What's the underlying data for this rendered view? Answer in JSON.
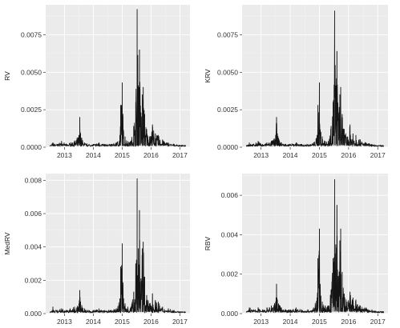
{
  "chart_data": [
    {
      "type": "line",
      "ylabel": "RV",
      "ylim": [
        0,
        0.0095
      ],
      "xlim": [
        2012.35,
        2017.35
      ],
      "y_ticks": [
        0.0,
        0.0025,
        0.005,
        0.0075
      ],
      "y_tick_labels": [
        "0.0000",
        "0.0025",
        "0.0050",
        "0.0075"
      ],
      "x_ticks": [
        2013,
        2014,
        2015,
        2016,
        2017
      ],
      "x_tick_labels": [
        "2013",
        "2014",
        "2015",
        "2016",
        "2017"
      ],
      "grid": true,
      "color": "#151515",
      "baseline": 0.00012,
      "series": [
        {
          "x": [
            2012.5,
            2012.6,
            2012.75,
            2012.9,
            2013.05,
            2013.2,
            2013.35,
            2013.5,
            2013.53,
            2013.56,
            2013.6,
            2013.7,
            2013.85,
            2014.0,
            2014.2,
            2014.4,
            2014.6,
            2014.8,
            2014.92,
            2014.95,
            2015.0,
            2015.05,
            2015.1,
            2015.2,
            2015.3,
            2015.4,
            2015.47,
            2015.52,
            2015.56,
            2015.6,
            2015.65,
            2015.7,
            2015.73,
            2015.78,
            2015.85,
            2015.95,
            2016.05,
            2016.15,
            2016.25,
            2016.4,
            2016.6,
            2016.8,
            2017.0,
            2017.2
          ],
          "values": [
            0.0001,
            0.0003,
            0.0002,
            0.0004,
            0.0002,
            0.0003,
            0.0004,
            0.0008,
            0.002,
            0.0009,
            0.0006,
            0.0003,
            0.0002,
            0.0002,
            0.0003,
            0.0002,
            0.0002,
            0.0003,
            0.0008,
            0.0028,
            0.0043,
            0.001,
            0.0007,
            0.0004,
            0.0004,
            0.0014,
            0.003,
            0.0092,
            0.0041,
            0.0065,
            0.0023,
            0.0035,
            0.004,
            0.0022,
            0.0012,
            0.0007,
            0.0015,
            0.0009,
            0.0008,
            0.0005,
            0.0003,
            0.0002,
            0.0001,
            0.0001
          ]
        }
      ]
    },
    {
      "type": "line",
      "ylabel": "KRV",
      "ylim": [
        0,
        0.0095
      ],
      "xlim": [
        2012.35,
        2017.35
      ],
      "y_ticks": [
        0.0,
        0.0025,
        0.005,
        0.0075
      ],
      "y_tick_labels": [
        "0.0000",
        "0.0025",
        "0.0050",
        "0.0075"
      ],
      "x_ticks": [
        2013,
        2014,
        2015,
        2016,
        2017
      ],
      "x_tick_labels": [
        "2013",
        "2014",
        "2015",
        "2016",
        "2017"
      ],
      "grid": true,
      "color": "#151515",
      "baseline": 0.00012,
      "series": [
        {
          "x": [
            2012.5,
            2012.6,
            2012.75,
            2012.9,
            2013.05,
            2013.2,
            2013.35,
            2013.5,
            2013.53,
            2013.56,
            2013.6,
            2013.7,
            2013.85,
            2014.0,
            2014.2,
            2014.4,
            2014.6,
            2014.8,
            2014.92,
            2014.95,
            2015.0,
            2015.05,
            2015.1,
            2015.2,
            2015.3,
            2015.4,
            2015.47,
            2015.52,
            2015.56,
            2015.6,
            2015.65,
            2015.7,
            2015.73,
            2015.78,
            2015.85,
            2015.95,
            2016.05,
            2016.15,
            2016.25,
            2016.4,
            2016.6,
            2016.8,
            2017.0,
            2017.2
          ],
          "values": [
            0.0001,
            0.0003,
            0.0002,
            0.0004,
            0.0002,
            0.0003,
            0.0004,
            0.0008,
            0.002,
            0.0009,
            0.0006,
            0.0003,
            0.0002,
            0.0002,
            0.0003,
            0.0002,
            0.0002,
            0.0003,
            0.0008,
            0.0028,
            0.0043,
            0.001,
            0.0007,
            0.0004,
            0.0004,
            0.0014,
            0.003,
            0.0091,
            0.0041,
            0.0064,
            0.0023,
            0.0035,
            0.004,
            0.0022,
            0.0012,
            0.0007,
            0.0015,
            0.0009,
            0.0008,
            0.0005,
            0.0003,
            0.0002,
            0.0001,
            0.0001
          ]
        }
      ]
    },
    {
      "type": "line",
      "ylabel": "MedRV",
      "ylim": [
        0,
        0.0084
      ],
      "xlim": [
        2012.35,
        2017.35
      ],
      "y_ticks": [
        0.0,
        0.002,
        0.004,
        0.006,
        0.008
      ],
      "y_tick_labels": [
        "0.000",
        "0.002",
        "0.004",
        "0.006",
        "0.008"
      ],
      "x_ticks": [
        2013,
        2014,
        2015,
        2016,
        2017
      ],
      "x_tick_labels": [
        "2013",
        "2014",
        "2015",
        "2016",
        "2017"
      ],
      "grid": true,
      "color": "#151515",
      "baseline": 0.0001,
      "series": [
        {
          "x": [
            2012.5,
            2012.6,
            2012.75,
            2012.9,
            2013.05,
            2013.2,
            2013.35,
            2013.5,
            2013.53,
            2013.56,
            2013.6,
            2013.7,
            2013.85,
            2014.0,
            2014.2,
            2014.4,
            2014.6,
            2014.8,
            2014.92,
            2014.95,
            2015.0,
            2015.05,
            2015.1,
            2015.2,
            2015.3,
            2015.4,
            2015.47,
            2015.52,
            2015.56,
            2015.6,
            2015.65,
            2015.7,
            2015.73,
            2015.78,
            2015.85,
            2015.95,
            2016.05,
            2016.15,
            2016.25,
            2016.4,
            2016.6,
            2016.8,
            2017.0,
            2017.2
          ],
          "values": [
            0.0001,
            0.0004,
            0.0002,
            0.0003,
            0.0002,
            0.0003,
            0.0004,
            0.0006,
            0.0014,
            0.0007,
            0.0005,
            0.0003,
            0.0002,
            0.0002,
            0.0003,
            0.0002,
            0.0002,
            0.0003,
            0.0009,
            0.0028,
            0.0042,
            0.0009,
            0.0006,
            0.0004,
            0.0004,
            0.0013,
            0.003,
            0.0081,
            0.0039,
            0.0062,
            0.0021,
            0.0039,
            0.0043,
            0.0022,
            0.0011,
            0.0006,
            0.0012,
            0.0008,
            0.0007,
            0.0004,
            0.0003,
            0.0002,
            0.0001,
            0.0001
          ]
        }
      ]
    },
    {
      "type": "line",
      "ylabel": "RBV",
      "ylim": [
        0,
        0.0071
      ],
      "xlim": [
        2012.35,
        2017.35
      ],
      "y_ticks": [
        0.0,
        0.002,
        0.004,
        0.006
      ],
      "y_tick_labels": [
        "0.000",
        "0.002",
        "0.004",
        "0.006"
      ],
      "x_ticks": [
        2013,
        2014,
        2015,
        2016,
        2017
      ],
      "x_tick_labels": [
        "2013",
        "2014",
        "2015",
        "2016",
        "2017"
      ],
      "grid": true,
      "color": "#151515",
      "baseline": 0.0001,
      "series": [
        {
          "x": [
            2012.5,
            2012.6,
            2012.75,
            2012.9,
            2013.05,
            2013.2,
            2013.35,
            2013.5,
            2013.53,
            2013.56,
            2013.6,
            2013.7,
            2013.85,
            2014.0,
            2014.2,
            2014.4,
            2014.6,
            2014.8,
            2014.92,
            2014.95,
            2015.0,
            2015.05,
            2015.1,
            2015.2,
            2015.3,
            2015.4,
            2015.47,
            2015.52,
            2015.56,
            2015.6,
            2015.65,
            2015.7,
            2015.73,
            2015.78,
            2015.85,
            2015.95,
            2016.05,
            2016.15,
            2016.25,
            2016.4,
            2016.6,
            2016.8,
            2017.0,
            2017.2
          ],
          "values": [
            0.0001,
            0.0003,
            0.0002,
            0.0003,
            0.0002,
            0.0003,
            0.0004,
            0.0006,
            0.0015,
            0.0007,
            0.0005,
            0.0003,
            0.0002,
            0.0002,
            0.0003,
            0.0002,
            0.0002,
            0.0003,
            0.0008,
            0.0028,
            0.0043,
            0.0009,
            0.0006,
            0.0004,
            0.0004,
            0.0012,
            0.0028,
            0.0068,
            0.0035,
            0.0055,
            0.0019,
            0.0037,
            0.0043,
            0.0021,
            0.001,
            0.0006,
            0.0011,
            0.0008,
            0.0007,
            0.0004,
            0.0003,
            0.0002,
            0.0001,
            0.0001
          ]
        }
      ]
    }
  ]
}
